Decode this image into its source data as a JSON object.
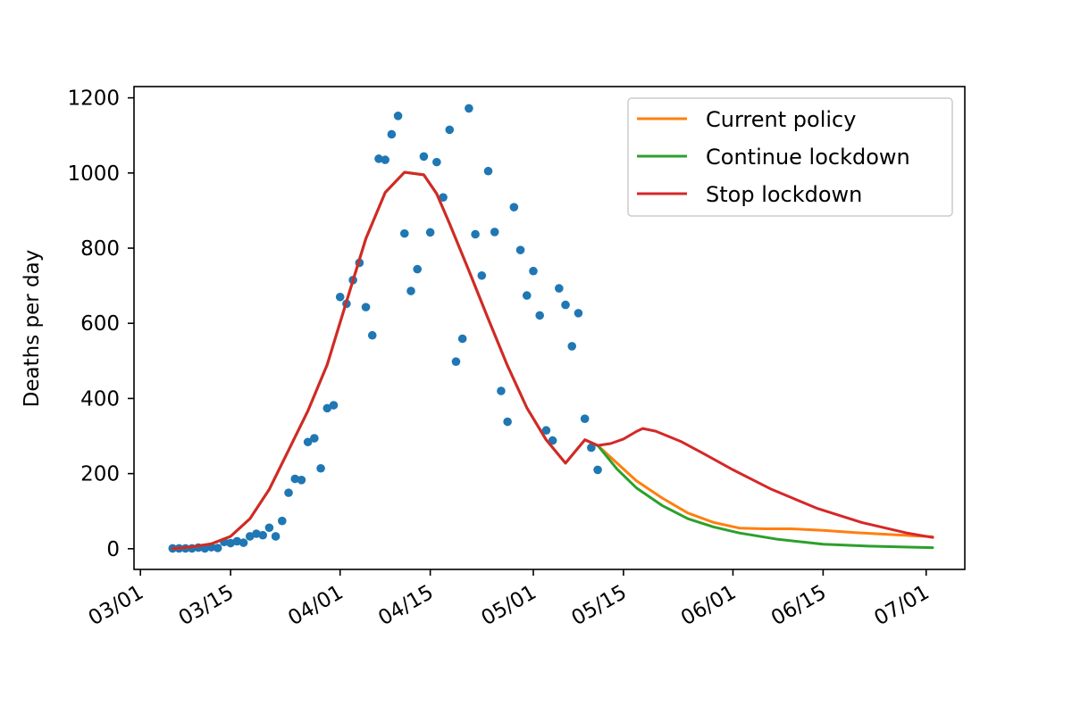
{
  "chart_data": {
    "type": "line",
    "ylabel": "Deaths per day",
    "xlabel": "",
    "ylim": [
      -55,
      1230
    ],
    "xlim": [
      "2020-02-29",
      "2020-07-07"
    ],
    "yticks": [
      0,
      200,
      400,
      600,
      800,
      1000,
      1200
    ],
    "xticks": [
      {
        "date": "2020-03-01",
        "label": "03/01"
      },
      {
        "date": "2020-03-15",
        "label": "03/15"
      },
      {
        "date": "2020-04-01",
        "label": "04/01"
      },
      {
        "date": "2020-04-15",
        "label": "04/15"
      },
      {
        "date": "2020-05-01",
        "label": "05/01"
      },
      {
        "date": "2020-05-15",
        "label": "05/15"
      },
      {
        "date": "2020-06-01",
        "label": "06/01"
      },
      {
        "date": "2020-06-15",
        "label": "06/15"
      },
      {
        "date": "2020-07-01",
        "label": "07/01"
      }
    ],
    "grid": false,
    "legend": "top-right",
    "colors": {
      "observed": "#1f77b4",
      "current": "#ff7f0e",
      "continue": "#2ca02c",
      "stop": "#d62728"
    },
    "observed": {
      "x": [
        "2020-03-06",
        "2020-03-07",
        "2020-03-08",
        "2020-03-09",
        "2020-03-10",
        "2020-03-11",
        "2020-03-12",
        "2020-03-13",
        "2020-03-14",
        "2020-03-15",
        "2020-03-16",
        "2020-03-17",
        "2020-03-18",
        "2020-03-19",
        "2020-03-20",
        "2020-03-21",
        "2020-03-22",
        "2020-03-23",
        "2020-03-24",
        "2020-03-25",
        "2020-03-26",
        "2020-03-27",
        "2020-03-28",
        "2020-03-29",
        "2020-03-30",
        "2020-03-31",
        "2020-04-01",
        "2020-04-02",
        "2020-04-03",
        "2020-04-04",
        "2020-04-05",
        "2020-04-06",
        "2020-04-07",
        "2020-04-08",
        "2020-04-09",
        "2020-04-10",
        "2020-04-11",
        "2020-04-12",
        "2020-04-13",
        "2020-04-14",
        "2020-04-15",
        "2020-04-16",
        "2020-04-17",
        "2020-04-18",
        "2020-04-19",
        "2020-04-20",
        "2020-04-21",
        "2020-04-22",
        "2020-04-23",
        "2020-04-24",
        "2020-04-25",
        "2020-04-26",
        "2020-04-27",
        "2020-04-28",
        "2020-04-29",
        "2020-04-30",
        "2020-05-01",
        "2020-05-02",
        "2020-05-03",
        "2020-05-04",
        "2020-05-05",
        "2020-05-06",
        "2020-05-07",
        "2020-05-08",
        "2020-05-09",
        "2020-05-10",
        "2020-05-11"
      ],
      "y": [
        1,
        1,
        1,
        1,
        3,
        1,
        4,
        2,
        18,
        15,
        20,
        16,
        33,
        40,
        36,
        56,
        33,
        74,
        149,
        186,
        183,
        284,
        294,
        214,
        374,
        382,
        670,
        652,
        715,
        761,
        643,
        568,
        1038,
        1035,
        1103,
        1152,
        839,
        686,
        744,
        1044,
        842,
        1029,
        935,
        1115,
        498,
        559,
        1172,
        837,
        727,
        1005,
        843,
        420,
        338,
        909,
        795,
        674,
        739,
        621,
        315,
        288,
        693,
        649,
        539,
        627,
        346,
        269,
        210
      ]
    },
    "series": [
      {
        "name": "Current policy",
        "x": [
          "2020-03-06",
          "2020-03-09",
          "2020-03-12",
          "2020-03-15",
          "2020-03-18",
          "2020-03-21",
          "2020-03-24",
          "2020-03-27",
          "2020-03-30",
          "2020-04-02",
          "2020-04-05",
          "2020-04-08",
          "2020-04-11",
          "2020-04-14",
          "2020-04-16",
          "2020-04-18",
          "2020-04-21",
          "2020-04-24",
          "2020-04-27",
          "2020-04-30",
          "2020-05-03",
          "2020-05-06",
          "2020-05-09",
          "2020-05-11",
          "2020-05-14",
          "2020-05-17",
          "2020-05-21",
          "2020-05-25",
          "2020-05-29",
          "2020-06-02",
          "2020-06-06",
          "2020-06-10",
          "2020-06-15",
          "2020-06-20",
          "2020-06-25",
          "2020-07-02"
        ],
        "y": [
          0,
          5,
          13,
          33,
          80,
          158,
          262,
          367,
          490,
          658,
          825,
          948,
          1002,
          995,
          945,
          865,
          740,
          612,
          487,
          375,
          290,
          228,
          290,
          275,
          228,
          181,
          135,
          95,
          70,
          55,
          53,
          53,
          49,
          43,
          38,
          32
        ]
      },
      {
        "name": "Continue lockdown",
        "x": [
          "2020-03-06",
          "2020-03-09",
          "2020-03-12",
          "2020-03-15",
          "2020-03-18",
          "2020-03-21",
          "2020-03-24",
          "2020-03-27",
          "2020-03-30",
          "2020-04-02",
          "2020-04-05",
          "2020-04-08",
          "2020-04-11",
          "2020-04-14",
          "2020-04-16",
          "2020-04-18",
          "2020-04-21",
          "2020-04-24",
          "2020-04-27",
          "2020-04-30",
          "2020-05-03",
          "2020-05-06",
          "2020-05-09",
          "2020-05-11",
          "2020-05-14",
          "2020-05-17",
          "2020-05-21",
          "2020-05-25",
          "2020-05-29",
          "2020-06-02",
          "2020-06-08",
          "2020-06-15",
          "2020-06-22",
          "2020-07-02"
        ],
        "y": [
          0,
          5,
          13,
          33,
          80,
          158,
          262,
          367,
          490,
          658,
          825,
          948,
          1002,
          995,
          945,
          865,
          740,
          612,
          487,
          375,
          290,
          228,
          290,
          275,
          212,
          162,
          115,
          80,
          58,
          42,
          25,
          12,
          7,
          3
        ]
      },
      {
        "name": "Stop lockdown",
        "x": [
          "2020-03-06",
          "2020-03-09",
          "2020-03-12",
          "2020-03-15",
          "2020-03-18",
          "2020-03-21",
          "2020-03-24",
          "2020-03-27",
          "2020-03-30",
          "2020-04-02",
          "2020-04-05",
          "2020-04-08",
          "2020-04-11",
          "2020-04-14",
          "2020-04-16",
          "2020-04-18",
          "2020-04-21",
          "2020-04-24",
          "2020-04-27",
          "2020-04-30",
          "2020-05-03",
          "2020-05-06",
          "2020-05-09",
          "2020-05-11",
          "2020-05-13",
          "2020-05-15",
          "2020-05-17",
          "2020-05-18",
          "2020-05-20",
          "2020-05-24",
          "2020-05-28",
          "2020-06-01",
          "2020-06-07",
          "2020-06-14",
          "2020-06-21",
          "2020-06-28",
          "2020-07-02"
        ],
        "y": [
          0,
          5,
          13,
          33,
          80,
          158,
          262,
          367,
          490,
          658,
          825,
          948,
          1002,
          995,
          945,
          865,
          740,
          612,
          487,
          375,
          290,
          228,
          290,
          275,
          280,
          292,
          312,
          320,
          313,
          285,
          248,
          210,
          158,
          108,
          70,
          42,
          30
        ]
      }
    ]
  }
}
